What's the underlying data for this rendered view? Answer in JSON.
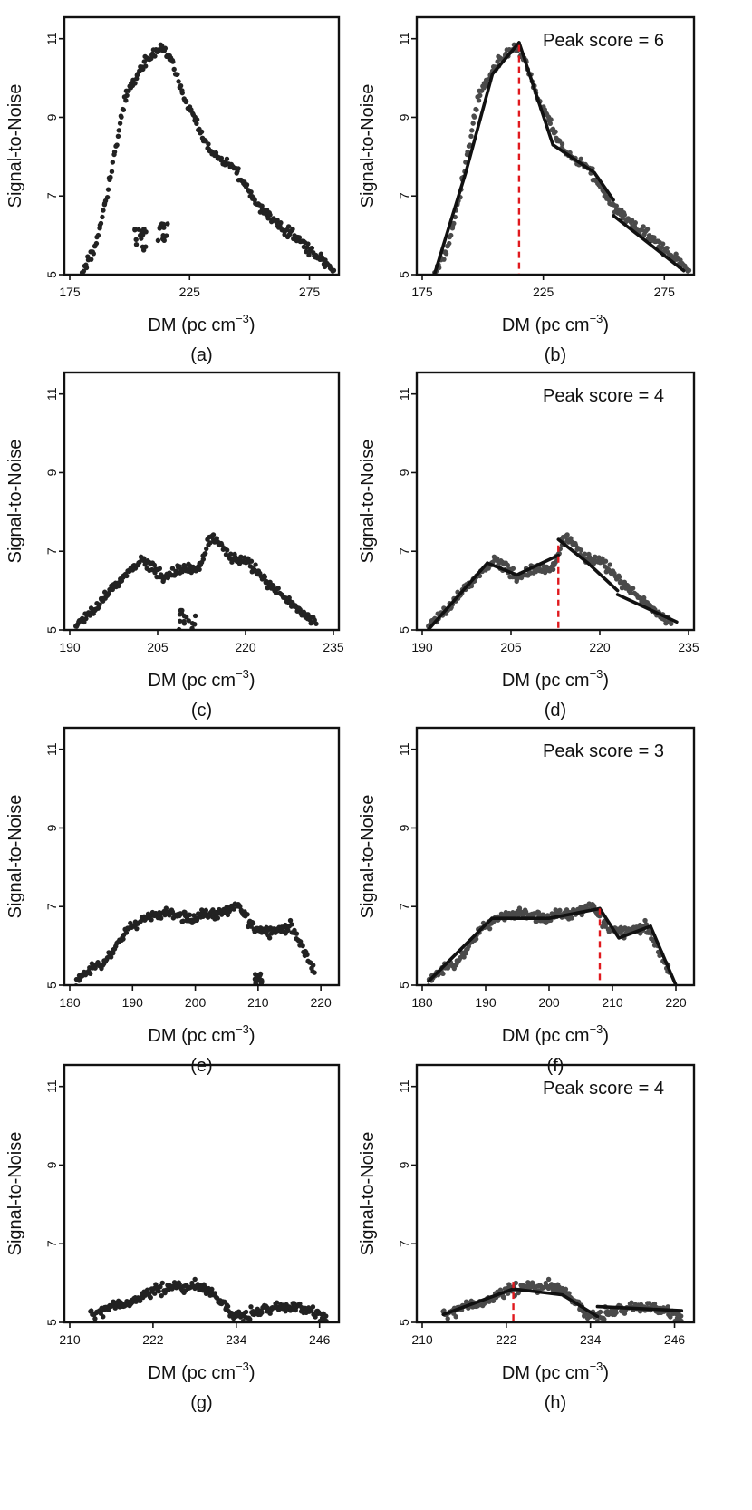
{
  "figure": {
    "ylabel": "Signal-to-Noise",
    "xlabel_main": "DM",
    "xlabel_unit": "(pc cm",
    "xlabel_exp": "−3",
    "xlabel_close": ")",
    "y_ticks": [
      "5",
      "7",
      "9",
      "11"
    ],
    "panel_labels": [
      "(a)",
      "(b)",
      "(c)",
      "(d)",
      "(e)",
      "(f)",
      "(g)",
      "(h)"
    ],
    "colors": {
      "points": "#222222",
      "points_fitted": "#4a4a4a",
      "fit_line": "#111111",
      "peak_line": "#e0191e"
    }
  },
  "chart_data": [
    {
      "panel": "(a)",
      "type": "scatter",
      "title": "",
      "xlabel": "DM (pc cm−3)",
      "ylabel": "Signal-to-Noise",
      "xlim": [
        175,
        285
      ],
      "ylim": [
        5,
        11.5
      ],
      "xticks": [
        "175",
        "225",
        "275"
      ],
      "yticks": [
        "5",
        "7",
        "9",
        "11"
      ],
      "curve": [
        [
          180,
          5
        ],
        [
          186,
          5.8
        ],
        [
          192,
          7.5
        ],
        [
          198,
          9.5
        ],
        [
          205,
          10.3
        ],
        [
          213,
          10.8
        ],
        [
          218,
          10.4
        ],
        [
          222,
          9.6
        ],
        [
          228,
          8.8
        ],
        [
          234,
          8.1
        ],
        [
          240,
          7.9
        ],
        [
          246,
          7.5
        ],
        [
          252,
          6.9
        ],
        [
          258,
          6.5
        ],
        [
          264,
          6.2
        ],
        [
          272,
          5.8
        ],
        [
          280,
          5.4
        ],
        [
          285,
          5.1
        ]
      ],
      "clusters": [
        {
          "x": [
            202,
            207
          ],
          "y": [
            5.6,
            6.2
          ]
        },
        {
          "x": [
            211,
            216
          ],
          "y": [
            5.8,
            6.4
          ]
        }
      ],
      "fit_segments": [],
      "peak_dm": null,
      "peak_score_label": ""
    },
    {
      "panel": "(b)",
      "type": "scatter",
      "title": "",
      "xlabel": "DM (pc cm−3)",
      "ylabel": "Signal-to-Noise",
      "xlim": [
        175,
        285
      ],
      "ylim": [
        5,
        11.5
      ],
      "xticks": [
        "175",
        "225",
        "275"
      ],
      "yticks": [
        "5",
        "7",
        "9",
        "11"
      ],
      "curve": [
        [
          180,
          5
        ],
        [
          186,
          5.8
        ],
        [
          192,
          7.5
        ],
        [
          198,
          9.5
        ],
        [
          205,
          10.3
        ],
        [
          213,
          10.8
        ],
        [
          218,
          10.4
        ],
        [
          222,
          9.6
        ],
        [
          228,
          8.8
        ],
        [
          234,
          8.1
        ],
        [
          240,
          7.9
        ],
        [
          246,
          7.5
        ],
        [
          252,
          6.9
        ],
        [
          258,
          6.5
        ],
        [
          264,
          6.2
        ],
        [
          272,
          5.8
        ],
        [
          280,
          5.4
        ],
        [
          285,
          5.1
        ]
      ],
      "clusters": [],
      "fit_segments": [
        [
          [
            180,
            5.0
          ],
          [
            193,
            7.6
          ],
          [
            204,
            10.1
          ],
          [
            215,
            10.9
          ]
        ],
        [
          [
            215,
            10.9
          ],
          [
            229,
            8.3
          ]
        ],
        [
          [
            229,
            8.3
          ],
          [
            246,
            7.6
          ],
          [
            254,
            6.9
          ]
        ],
        [
          [
            254,
            6.5
          ],
          [
            283,
            5.1
          ]
        ]
      ],
      "peak_dm": 215,
      "peak_score_label": "Peak score = 6"
    },
    {
      "panel": "(c)",
      "type": "scatter",
      "title": "",
      "xlabel": "DM (pc cm−3)",
      "ylabel": "Signal-to-Noise",
      "xlim": [
        190,
        235
      ],
      "ylim": [
        5,
        11.5
      ],
      "xticks": [
        "190",
        "205",
        "220",
        "235"
      ],
      "yticks": [
        "5",
        "7",
        "9",
        "11"
      ],
      "curve": [
        [
          191,
          5.1
        ],
        [
          194,
          5.5
        ],
        [
          197,
          6.0
        ],
        [
          200,
          6.5
        ],
        [
          202,
          6.8
        ],
        [
          204,
          6.6
        ],
        [
          206,
          6.3
        ],
        [
          208,
          6.5
        ],
        [
          210,
          6.6
        ],
        [
          212,
          6.5
        ],
        [
          214,
          7.4
        ],
        [
          216,
          7.1
        ],
        [
          218,
          6.8
        ],
        [
          220,
          6.8
        ],
        [
          223,
          6.3
        ],
        [
          226,
          5.9
        ],
        [
          229,
          5.5
        ],
        [
          232,
          5.2
        ]
      ],
      "clusters": [
        {
          "x": [
            208.5,
            211.5
          ],
          "y": [
            5.0,
            5.5
          ]
        }
      ],
      "fit_segments": [],
      "peak_dm": null,
      "peak_score_label": ""
    },
    {
      "panel": "(d)",
      "type": "scatter",
      "title": "",
      "xlabel": "DM (pc cm−3)",
      "ylabel": "Signal-to-Noise",
      "xlim": [
        190,
        235
      ],
      "ylim": [
        5,
        11.5
      ],
      "xticks": [
        "190",
        "205",
        "220",
        "235"
      ],
      "yticks": [
        "5",
        "7",
        "9",
        "11"
      ],
      "curve": [
        [
          191,
          5.1
        ],
        [
          194,
          5.5
        ],
        [
          197,
          6.0
        ],
        [
          200,
          6.5
        ],
        [
          202,
          6.8
        ],
        [
          204,
          6.6
        ],
        [
          206,
          6.3
        ],
        [
          208,
          6.5
        ],
        [
          210,
          6.6
        ],
        [
          212,
          6.5
        ],
        [
          214,
          7.4
        ],
        [
          216,
          7.1
        ],
        [
          218,
          6.8
        ],
        [
          220,
          6.8
        ],
        [
          223,
          6.3
        ],
        [
          226,
          5.9
        ],
        [
          229,
          5.5
        ],
        [
          232,
          5.2
        ]
      ],
      "clusters": [],
      "fit_segments": [
        [
          [
            191,
            5.0
          ],
          [
            201,
            6.7
          ]
        ],
        [
          [
            201,
            6.7
          ],
          [
            206,
            6.4
          ],
          [
            213,
            6.9
          ]
        ],
        [
          [
            213,
            7.3
          ],
          [
            218,
            6.7
          ],
          [
            223,
            6.0
          ]
        ],
        [
          [
            223,
            5.9
          ],
          [
            233,
            5.2
          ]
        ]
      ],
      "peak_dm": 213,
      "peak_score_label": "Peak score = 4"
    },
    {
      "panel": "(e)",
      "type": "scatter",
      "title": "",
      "xlabel": "DM (pc cm−3)",
      "ylabel": "Signal-to-Noise",
      "xlim": [
        180,
        222
      ],
      "ylim": [
        5,
        11.5
      ],
      "xticks": [
        "180",
        "190",
        "200",
        "210",
        "220"
      ],
      "yticks": [
        "5",
        "7",
        "9",
        "11"
      ],
      "curve": [
        [
          181,
          5.1
        ],
        [
          183,
          5.4
        ],
        [
          185,
          5.5
        ],
        [
          187,
          5.9
        ],
        [
          189,
          6.4
        ],
        [
          191,
          6.6
        ],
        [
          193,
          6.8
        ],
        [
          195,
          6.8
        ],
        [
          197,
          6.8
        ],
        [
          199,
          6.7
        ],
        [
          201,
          6.8
        ],
        [
          203,
          6.8
        ],
        [
          205,
          6.9
        ],
        [
          207,
          7.0
        ],
        [
          209,
          6.5
        ],
        [
          211,
          6.4
        ],
        [
          213,
          6.4
        ],
        [
          215,
          6.5
        ],
        [
          217,
          6.0
        ],
        [
          219,
          5.3
        ]
      ],
      "clusters": [
        {
          "x": [
            209.5,
            211
          ],
          "y": [
            5.0,
            5.3
          ]
        }
      ],
      "fit_segments": [],
      "peak_dm": null,
      "peak_score_label": ""
    },
    {
      "panel": "(f)",
      "type": "scatter",
      "title": "",
      "xlabel": "DM (pc cm−3)",
      "ylabel": "Signal-to-Noise",
      "xlim": [
        180,
        222
      ],
      "ylim": [
        5,
        11.5
      ],
      "xticks": [
        "180",
        "190",
        "200",
        "210",
        "220"
      ],
      "yticks": [
        "5",
        "7",
        "9",
        "11"
      ],
      "curve": [
        [
          181,
          5.1
        ],
        [
          183,
          5.4
        ],
        [
          185,
          5.5
        ],
        [
          187,
          5.9
        ],
        [
          189,
          6.4
        ],
        [
          191,
          6.6
        ],
        [
          193,
          6.8
        ],
        [
          195,
          6.8
        ],
        [
          197,
          6.8
        ],
        [
          199,
          6.7
        ],
        [
          201,
          6.8
        ],
        [
          203,
          6.8
        ],
        [
          205,
          6.9
        ],
        [
          207,
          7.0
        ],
        [
          209,
          6.5
        ],
        [
          211,
          6.4
        ],
        [
          213,
          6.4
        ],
        [
          215,
          6.5
        ],
        [
          217,
          6.0
        ],
        [
          219,
          5.3
        ]
      ],
      "clusters": [],
      "fit_segments": [
        [
          [
            181,
            5.1
          ],
          [
            191,
            6.7
          ]
        ],
        [
          [
            191,
            6.7
          ],
          [
            200,
            6.7
          ],
          [
            208,
            6.95
          ]
        ],
        [
          [
            208,
            6.95
          ],
          [
            211,
            6.2
          ],
          [
            216,
            6.5
          ]
        ],
        [
          [
            216,
            6.5
          ],
          [
            220,
            5.0
          ]
        ]
      ],
      "peak_dm": 208,
      "peak_score_label": "Peak score = 3"
    },
    {
      "panel": "(g)",
      "type": "scatter",
      "title": "",
      "xlabel": "DM (pc cm−3)",
      "ylabel": "Signal-to-Noise",
      "xlim": [
        210,
        248
      ],
      "ylim": [
        5,
        11.5
      ],
      "xticks": [
        "210",
        "222",
        "234",
        "246"
      ],
      "yticks": [
        "5",
        "7",
        "9",
        "11"
      ],
      "curve": [
        [
          213,
          5.2
        ],
        [
          216,
          5.4
        ],
        [
          219,
          5.5
        ],
        [
          222,
          5.8
        ],
        [
          225,
          5.9
        ],
        [
          228,
          5.9
        ],
        [
          231,
          5.7
        ],
        [
          233,
          5.3
        ],
        [
          235,
          5.15
        ],
        [
          238,
          5.35
        ],
        [
          241,
          5.4
        ],
        [
          244,
          5.35
        ],
        [
          247,
          5.1
        ]
      ],
      "clusters": [],
      "fit_segments": [],
      "peak_dm": null,
      "peak_score_label": ""
    },
    {
      "panel": "(h)",
      "type": "scatter",
      "title": "",
      "xlabel": "DM (pc cm−3)",
      "ylabel": "Signal-to-Noise",
      "xlim": [
        210,
        248
      ],
      "ylim": [
        5,
        11.5
      ],
      "xticks": [
        "210",
        "222",
        "234",
        "246"
      ],
      "yticks": [
        "5",
        "7",
        "9",
        "11"
      ],
      "curve": [
        [
          213,
          5.2
        ],
        [
          216,
          5.4
        ],
        [
          219,
          5.5
        ],
        [
          222,
          5.8
        ],
        [
          225,
          5.9
        ],
        [
          228,
          5.9
        ],
        [
          231,
          5.7
        ],
        [
          233,
          5.3
        ],
        [
          235,
          5.15
        ],
        [
          238,
          5.35
        ],
        [
          241,
          5.4
        ],
        [
          244,
          5.35
        ],
        [
          247,
          5.1
        ]
      ],
      "clusters": [],
      "fit_segments": [
        [
          [
            213,
            5.2
          ],
          [
            223,
            5.85
          ]
        ],
        [
          [
            223,
            5.85
          ],
          [
            230,
            5.7
          ],
          [
            235,
            5.15
          ]
        ],
        [
          [
            235,
            5.4
          ],
          [
            247,
            5.3
          ]
        ]
      ],
      "peak_dm": 223,
      "peak_score_label": "Peak score = 4"
    }
  ]
}
